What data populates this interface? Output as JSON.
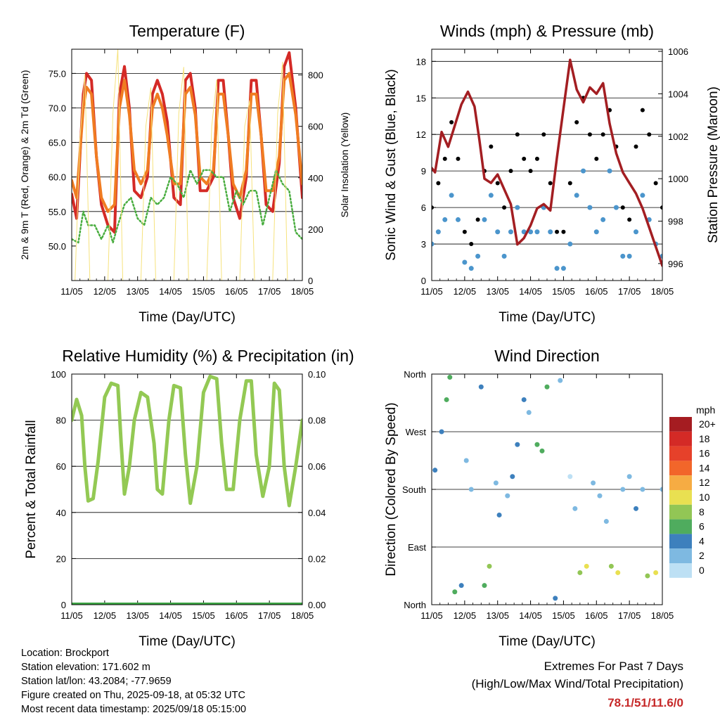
{
  "colors": {
    "temp_2m": "#d42a26",
    "temp_9m": "#f07c22",
    "dewpoint": "#49ad3f",
    "solar": "#f6e27c",
    "gust": "#000000",
    "wind": "#4b95cc",
    "pressure": "#a31e22",
    "rh": "#93c954",
    "precip": "#3ba443",
    "extremes": "#c62828"
  },
  "chart_data": [
    {
      "type": "line",
      "title": "Temperature (F)",
      "xlabel": "Time (Day/UTC)",
      "ylabel": "2m & 9m T (Red, Orange) & 2m Td (Green)",
      "ylabel_right": "Solar Insolation (Yellow)",
      "x_ticks": [
        "11/05",
        "12/05",
        "13/05",
        "14/05",
        "15/05",
        "16/05",
        "17/05",
        "18/05"
      ],
      "xlim": [
        0,
        7
      ],
      "ylim": [
        45,
        78.5
      ],
      "yticks": [
        "50.0",
        "55.0",
        "60.0",
        "65.0",
        "70.0",
        "75.0"
      ],
      "ytick_values": [
        50,
        55,
        60,
        65,
        70,
        75
      ],
      "ylim_right": [
        0,
        900
      ],
      "yticks_right": [
        "0",
        "200",
        "400",
        "600",
        "800"
      ],
      "ytick_right_values": [
        0,
        200,
        400,
        600,
        800
      ],
      "grid": true,
      "series": [
        {
          "name": "2m T",
          "x": [
            0,
            0.15,
            0.35,
            0.45,
            0.6,
            0.75,
            0.9,
            1.1,
            1.3,
            1.45,
            1.6,
            1.75,
            1.9,
            2.1,
            2.3,
            2.45,
            2.6,
            2.75,
            2.9,
            3.1,
            3.3,
            3.45,
            3.6,
            3.75,
            3.9,
            4.1,
            4.3,
            4.45,
            4.6,
            4.75,
            4.9,
            5.1,
            5.3,
            5.45,
            5.6,
            5.75,
            5.9,
            6.1,
            6.3,
            6.45,
            6.6,
            6.8,
            7.0
          ],
          "y": [
            57.5,
            54,
            72,
            75,
            74,
            63,
            56,
            53,
            52,
            72,
            76,
            70,
            58,
            57,
            60,
            72,
            74,
            72,
            68,
            57,
            56,
            74,
            75,
            70,
            58,
            58,
            60,
            74,
            74,
            66,
            57,
            54,
            60,
            74,
            74,
            66,
            56,
            55,
            62,
            76,
            78,
            70,
            57
          ]
        },
        {
          "name": "9m T",
          "x": [
            0,
            0.15,
            0.35,
            0.45,
            0.6,
            0.75,
            0.9,
            1.1,
            1.3,
            1.45,
            1.6,
            1.75,
            1.9,
            2.1,
            2.3,
            2.45,
            2.6,
            2.75,
            2.9,
            3.1,
            3.3,
            3.45,
            3.6,
            3.75,
            3.9,
            4.1,
            4.3,
            4.45,
            4.6,
            4.75,
            4.9,
            5.1,
            5.3,
            5.45,
            5.6,
            5.75,
            5.9,
            6.1,
            6.3,
            6.45,
            6.6,
            6.8,
            7.0
          ],
          "y": [
            59.5,
            57,
            70,
            73,
            72,
            63,
            57,
            55,
            56,
            70,
            74,
            69,
            61,
            59,
            61,
            70,
            72,
            70,
            66,
            59,
            59,
            72,
            73,
            69,
            60,
            59,
            61,
            72,
            72,
            66,
            59,
            57,
            61,
            72,
            72,
            66,
            58,
            58,
            63,
            74,
            75,
            69,
            59
          ]
        },
        {
          "name": "2m Td",
          "x": [
            0,
            0.2,
            0.35,
            0.5,
            0.7,
            0.9,
            1.1,
            1.25,
            1.4,
            1.6,
            1.8,
            2.0,
            2.2,
            2.4,
            2.6,
            2.8,
            3.0,
            3.2,
            3.4,
            3.6,
            3.8,
            4.0,
            4.2,
            4.4,
            4.6,
            4.8,
            5.0,
            5.2,
            5.4,
            5.6,
            5.8,
            6.0,
            6.2,
            6.4,
            6.6,
            6.8,
            7.0
          ],
          "y": [
            51,
            50.5,
            55,
            53,
            53,
            51,
            53,
            50.5,
            53,
            56,
            57,
            54,
            53,
            57,
            56,
            57,
            60,
            59,
            57,
            61,
            59,
            61,
            61,
            60,
            60,
            55,
            58,
            56,
            58,
            58,
            53,
            57,
            61,
            59,
            58,
            52,
            51
          ]
        },
        {
          "name": "Solar",
          "axis": "right",
          "x": [
            0.1,
            0.25,
            0.4,
            0.55,
            1.1,
            1.25,
            1.4,
            1.55,
            2.1,
            2.25,
            2.4,
            2.55,
            3.1,
            3.25,
            3.4,
            3.55,
            4.1,
            4.25,
            4.4,
            4.55,
            5.1,
            5.25,
            5.4,
            5.55,
            6.1,
            6.25,
            6.4,
            6.55
          ],
          "y": [
            0,
            550,
            800,
            0,
            0,
            650,
            900,
            0,
            0,
            600,
            750,
            0,
            0,
            650,
            830,
            0,
            0,
            600,
            780,
            0,
            0,
            600,
            700,
            0,
            0,
            650,
            850,
            0
          ]
        }
      ]
    },
    {
      "type": "scatter",
      "title": "Winds (mph) & Pressure (mb)",
      "xlabel": "Time (Day/UTC)",
      "ylabel": "Sonic Wind & Gust (Blue, Black)",
      "ylabel_right": "Station Pressure (Maroon)",
      "x_ticks": [
        "11/05",
        "12/05",
        "13/05",
        "14/05",
        "15/05",
        "16/05",
        "17/05",
        "18/05"
      ],
      "xlim": [
        0,
        7
      ],
      "ylim": [
        0,
        19
      ],
      "yticks": [
        "0",
        "3",
        "6",
        "9",
        "12",
        "15",
        "18"
      ],
      "ytick_values": [
        0,
        3,
        6,
        9,
        12,
        15,
        18
      ],
      "ylim_right": [
        995.2,
        1006.1
      ],
      "yticks_right": [
        "996",
        "998",
        "1000",
        "1002",
        "1004",
        "1006"
      ],
      "ytick_right_values": [
        996,
        998,
        1000,
        1002,
        1004,
        1006
      ],
      "grid": true,
      "series": [
        {
          "name": "Gust",
          "x": [
            0,
            0.2,
            0.4,
            0.6,
            0.8,
            1.0,
            1.2,
            1.4,
            1.6,
            1.8,
            2.0,
            2.2,
            2.4,
            2.6,
            2.8,
            3.0,
            3.2,
            3.4,
            3.6,
            3.8,
            4.0,
            4.2,
            4.4,
            4.6,
            4.8,
            5.0,
            5.2,
            5.4,
            5.6,
            5.8,
            6.0,
            6.2,
            6.4,
            6.6,
            6.8,
            7.0
          ],
          "y": [
            6,
            8,
            10,
            13,
            10,
            4,
            3,
            5,
            9,
            11,
            8,
            6,
            9,
            12,
            10,
            9,
            10,
            12,
            8,
            4,
            4,
            8,
            13,
            15,
            12,
            10,
            12,
            14,
            11,
            6,
            5,
            11,
            14,
            12,
            8,
            6
          ]
        },
        {
          "name": "Sonic Wind",
          "x": [
            0,
            0.2,
            0.4,
            0.6,
            0.8,
            1.0,
            1.2,
            1.4,
            1.6,
            1.8,
            2.0,
            2.2,
            2.4,
            2.6,
            2.8,
            3.0,
            3.2,
            3.4,
            3.6,
            3.8,
            4.0,
            4.2,
            4.4,
            4.6,
            4.8,
            5.0,
            5.2,
            5.4,
            5.6,
            5.8,
            6.0,
            6.2,
            6.4,
            6.6,
            6.8,
            7.0
          ],
          "y": [
            3,
            4,
            5,
            7,
            5,
            1.5,
            1,
            2,
            5,
            7,
            4,
            2,
            4,
            6,
            4,
            4,
            4,
            6,
            4,
            1,
            1,
            3,
            7,
            9,
            6,
            4,
            5,
            9,
            6,
            2,
            2,
            4,
            7,
            5,
            3,
            2
          ]
        },
        {
          "name": "Station Pressure",
          "axis": "right",
          "x": [
            0,
            0.1,
            0.3,
            0.5,
            0.7,
            0.9,
            1.1,
            1.3,
            1.45,
            1.6,
            1.8,
            2.0,
            2.2,
            2.4,
            2.6,
            2.8,
            3.0,
            3.2,
            3.4,
            3.6,
            3.8,
            4.0,
            4.2,
            4.4,
            4.6,
            4.8,
            5.0,
            5.2,
            5.4,
            5.6,
            5.8,
            6.0,
            6.2,
            6.4,
            6.6,
            6.8,
            7.0
          ],
          "y": [
            1000.5,
            1000.3,
            1002.2,
            1001.5,
            1002.5,
            1003.5,
            1004.1,
            1003.4,
            1001.8,
            1000,
            999.8,
            1000.2,
            999.5,
            998.8,
            996.9,
            997.2,
            997.8,
            998.6,
            998.8,
            998.5,
            1001,
            1003.3,
            1005.6,
            1004.2,
            1003.6,
            1004.3,
            1004,
            1004.5,
            1002.6,
            1001.2,
            1000.3,
            999.8,
            999.3,
            998.6,
            997.7,
            996.8,
            995.9
          ]
        }
      ]
    },
    {
      "type": "line",
      "title": "Relative Humidity (%) & Precipitation (in)",
      "xlabel": "Time (Day/UTC)",
      "ylabel": "Percent & Total Rainfall",
      "x_ticks": [
        "11/05",
        "12/05",
        "13/05",
        "14/05",
        "15/05",
        "16/05",
        "17/05",
        "18/05"
      ],
      "xlim": [
        0,
        7
      ],
      "ylim": [
        0,
        100
      ],
      "yticks": [
        "0",
        "20",
        "40",
        "60",
        "80",
        "100"
      ],
      "ytick_values": [
        0,
        20,
        40,
        60,
        80,
        100
      ],
      "ylim_right": [
        0,
        0.1
      ],
      "yticks_right": [
        "0.00",
        "0.02",
        "0.04",
        "0.06",
        "0.08",
        "0.10"
      ],
      "ytick_right_values": [
        0,
        0.02,
        0.04,
        0.06,
        0.08,
        0.1
      ],
      "grid": true,
      "series": [
        {
          "name": "RH",
          "x": [
            0,
            0.15,
            0.3,
            0.4,
            0.5,
            0.65,
            0.8,
            1.0,
            1.2,
            1.4,
            1.5,
            1.6,
            1.75,
            1.9,
            2.1,
            2.3,
            2.5,
            2.6,
            2.75,
            2.95,
            3.1,
            3.3,
            3.45,
            3.6,
            3.8,
            4.0,
            4.2,
            4.4,
            4.55,
            4.7,
            4.9,
            5.1,
            5.3,
            5.45,
            5.6,
            5.8,
            6.0,
            6.15,
            6.3,
            6.45,
            6.6,
            6.8,
            7.0
          ],
          "y": [
            80,
            89,
            82,
            60,
            45,
            46,
            62,
            90,
            96,
            95,
            70,
            48,
            60,
            80,
            92,
            90,
            70,
            50,
            48,
            80,
            95,
            94,
            65,
            44,
            60,
            92,
            99,
            98,
            70,
            50,
            50,
            80,
            97,
            97,
            65,
            47,
            60,
            96,
            93,
            60,
            43,
            60,
            80
          ]
        },
        {
          "name": "Precipitation",
          "axis": "right",
          "x": [
            0,
            7
          ],
          "y": [
            0,
            0
          ]
        }
      ]
    },
    {
      "type": "scatter",
      "title": "Wind Direction",
      "xlabel": "Time (Day/UTC)",
      "ylabel": "Direction (Colored By Speed)",
      "x_ticks": [
        "11/05",
        "12/05",
        "13/05",
        "14/05",
        "15/05",
        "16/05",
        "17/05",
        "18/05"
      ],
      "xlim": [
        0,
        7
      ],
      "ylim": [
        0,
        360
      ],
      "yticks": [
        "North",
        "East",
        "South",
        "West",
        "North"
      ],
      "ytick_values": [
        0,
        90,
        180,
        270,
        360
      ],
      "grid": true,
      "legend": {
        "title": "mph",
        "labels": [
          "20+",
          "18",
          "16",
          "14",
          "12",
          "10",
          "8",
          "6",
          "4",
          "2",
          "0"
        ],
        "colors": [
          "#a51c21",
          "#d42a26",
          "#e6412a",
          "#f2662a",
          "#f6ac43",
          "#e9e051",
          "#92c655",
          "#4fac5e",
          "#3d80bd",
          "#7eb9e1",
          "#bde0f4"
        ]
      },
      "series": [
        {
          "name": "Direction",
          "x": [
            0.1,
            0.3,
            0.45,
            0.55,
            0.7,
            0.9,
            1.05,
            1.2,
            1.5,
            1.6,
            1.75,
            1.95,
            2.05,
            2.3,
            2.45,
            2.6,
            2.8,
            2.95,
            3.2,
            3.35,
            3.5,
            3.75,
            3.9,
            4.2,
            4.35,
            4.5,
            4.7,
            4.9,
            5.1,
            5.3,
            5.45,
            5.65,
            5.8,
            6.0,
            6.2,
            6.4,
            6.55,
            6.8,
            7.0
          ],
          "y": [
            210,
            270,
            320,
            355,
            20,
            30,
            225,
            180,
            340,
            30,
            60,
            190,
            140,
            170,
            200,
            250,
            320,
            300,
            250,
            240,
            340,
            10,
            350,
            200,
            150,
            50,
            60,
            190,
            170,
            130,
            60,
            50,
            180,
            200,
            150,
            180,
            45,
            50,
            180
          ],
          "speed": [
            4,
            4,
            6,
            6,
            6,
            4,
            2,
            2,
            4,
            6,
            8,
            2,
            4,
            2,
            4,
            4,
            4,
            2,
            6,
            6,
            6,
            4,
            2,
            0,
            2,
            8,
            10,
            2,
            2,
            2,
            8,
            10,
            2,
            2,
            4,
            2,
            8,
            10,
            2
          ]
        }
      ]
    }
  ],
  "info": {
    "location": "Location: Brockport",
    "elevation": "Station elevation: 171.602 m",
    "latlon": "Station lat/lon: 43.2084; -77.9659",
    "created": "Figure created on Thu, 2025-09-18, at 05:32 UTC",
    "recent": "Most recent data timestamp: 2025/09/18 05:15:00"
  },
  "extremes": {
    "title": "Extremes For Past 7 Days",
    "subtitle": "(High/Low/Max Wind/Total Precipitation)",
    "values": "78.1/51/11.6/0"
  }
}
